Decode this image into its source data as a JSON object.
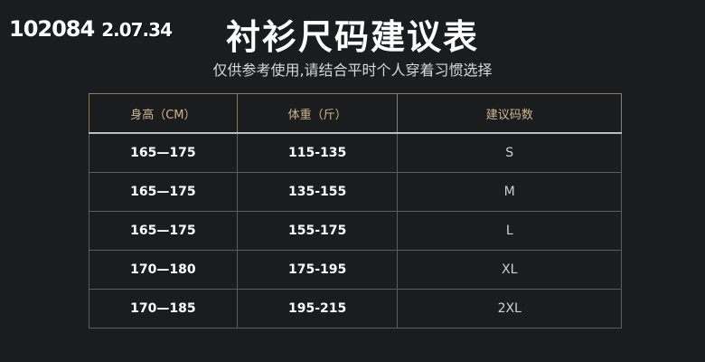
{
  "watermark": {
    "a": "102084",
    "b": "2.07.34"
  },
  "title": "衬衫尺码建议表",
  "subtitle": "仅供参考使用,请结合平时个人穿着习惯选择",
  "table": {
    "headers": [
      "身高（CM）",
      "体重（斤）",
      "建议码数"
    ],
    "rows": [
      [
        "165—175",
        "115-135",
        "S"
      ],
      [
        "165—175",
        "135-155",
        "M"
      ],
      [
        "165—175",
        "155-175",
        "L"
      ],
      [
        "170—180",
        "175-195",
        "XL"
      ],
      [
        "170—185",
        "195-215",
        "2XL"
      ]
    ]
  }
}
